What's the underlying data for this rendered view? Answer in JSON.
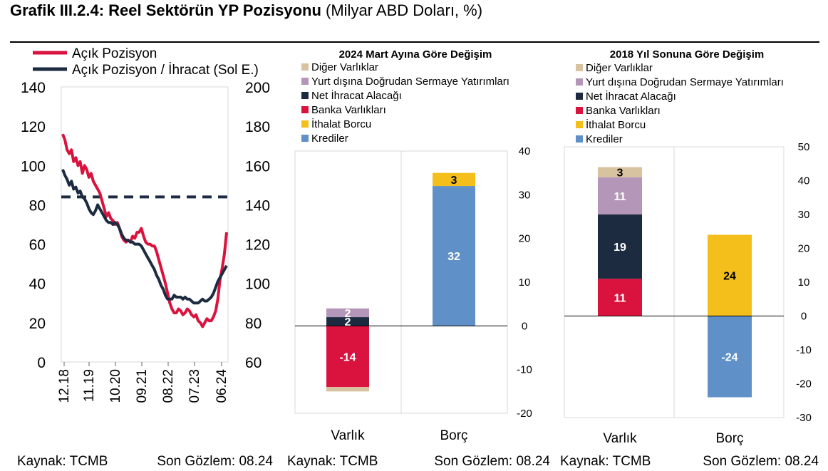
{
  "title": {
    "bold": "Grafik III.2.4: Reel Sektörün YP Pozisyonu",
    "unit": "(Milyar ABD Doları, %)"
  },
  "colors": {
    "red": "#d9133e",
    "navy": "#1d2b41",
    "beige": "#d7c3a0",
    "lilac": "#b497b8",
    "yellow": "#f5bf1b",
    "blue": "#5f90c8"
  },
  "chart_data": [
    {
      "type": "line",
      "legend": [
        "Açık Pozisyon",
        "Açık Pozisyon / İhracat (Sol E.)"
      ],
      "x_ticks": [
        "12.18",
        "11.19",
        "10.20",
        "09.21",
        "08.22",
        "07.23",
        "06.24"
      ],
      "left_axis": {
        "ticks": [
          0,
          20,
          40,
          60,
          80,
          100,
          120,
          140
        ],
        "range": [
          0,
          140
        ]
      },
      "right_axis": {
        "ticks": [
          60,
          80,
          100,
          120,
          140,
          160,
          180,
          200
        ],
        "range": [
          60,
          200
        ]
      },
      "reference_line": {
        "axis": "left",
        "value": 84,
        "style": "dashed"
      },
      "series": [
        {
          "name": "Açık Pozisyon",
          "axis": "right",
          "values": [
            176,
            173,
            168,
            166,
            168,
            162,
            164,
            160,
            162,
            156,
            160,
            158,
            154,
            156,
            152,
            150,
            148,
            146,
            142,
            138,
            134,
            136,
            133,
            132,
            130,
            131,
            128,
            124,
            122,
            121,
            122,
            121,
            124,
            123,
            126,
            126,
            128,
            124,
            121,
            120,
            120,
            119,
            119,
            116,
            112,
            108,
            104,
            100,
            95,
            90,
            87,
            85,
            85,
            87,
            86,
            84,
            85,
            87,
            86,
            84,
            83,
            84,
            81,
            80,
            78,
            80,
            82,
            81,
            81,
            83,
            86,
            92,
            102,
            108,
            115,
            126
          ]
        },
        {
          "name": "Açık Pozisyon / İhracat (Sol E.)",
          "axis": "left",
          "values": [
            98,
            95,
            93,
            90,
            92,
            88,
            89,
            86,
            87,
            84,
            83,
            81,
            78,
            76,
            75,
            77,
            80,
            78,
            76,
            74,
            72,
            71,
            71,
            70,
            71,
            70,
            68,
            65,
            63,
            62,
            62,
            61,
            61,
            60,
            60,
            60,
            59,
            57,
            55,
            53,
            51,
            49,
            47,
            44,
            42,
            39,
            37,
            34,
            32,
            32,
            32,
            34,
            33,
            33,
            33,
            32,
            33,
            32,
            32,
            31,
            30,
            30,
            30,
            31,
            32,
            31,
            31,
            32,
            33,
            35,
            38,
            41,
            43,
            45,
            47,
            49
          ]
        }
      ]
    },
    {
      "type": "bar",
      "stacked": true,
      "title": "2024 Mart Ayına Göre Değişim",
      "categories": [
        "Varlık",
        "Borç"
      ],
      "ylim": [
        -20,
        40
      ],
      "y_ticks": [
        -20,
        -10,
        0,
        10,
        20,
        30,
        40
      ],
      "legend": [
        "Diğer Varlıklar",
        "Yurt dışına Doğrudan Sermaye Yatırımları",
        "Net İhracat Alacağı",
        "Banka Varlıkları",
        "İthalat Borcu",
        "Krediler"
      ],
      "segments": [
        {
          "category": "Varlık",
          "series": "Banka Varlıkları",
          "value": -14,
          "label": "-14"
        },
        {
          "category": "Varlık",
          "series": "Diğer Varlıklar",
          "value": -1
        },
        {
          "category": "Varlık",
          "series": "Net İhracat Alacağı",
          "value": 2,
          "label": "2"
        },
        {
          "category": "Varlık",
          "series": "Yurt dışına Doğrudan Sermaye Yatırımları",
          "value": 2,
          "label": "2"
        },
        {
          "category": "Borç",
          "series": "Krediler",
          "value": 32,
          "label": "32"
        },
        {
          "category": "Borç",
          "series": "İthalat Borcu",
          "value": 3,
          "label": "3"
        }
      ]
    },
    {
      "type": "bar",
      "stacked": true,
      "title": "2018 Yıl Sonuna Göre Değişim",
      "categories": [
        "Varlık",
        "Borç"
      ],
      "ylim": [
        -30,
        50
      ],
      "y_ticks": [
        -30,
        -20,
        -10,
        0,
        10,
        20,
        30,
        40,
        50
      ],
      "legend": [
        "Diğer Varlıklar",
        "Yurt dışına Doğrudan Sermaye Yatırımları",
        "Net İhracat Alacağı",
        "Banka Varlıkları",
        "İthalat Borcu",
        "Krediler"
      ],
      "segments": [
        {
          "category": "Varlık",
          "series": "Banka Varlıkları",
          "value": 11,
          "label": "11"
        },
        {
          "category": "Varlık",
          "series": "Net İhracat Alacağı",
          "value": 19,
          "label": "19"
        },
        {
          "category": "Varlık",
          "series": "Yurt dışına Doğrudan Sermaye Yatırımları",
          "value": 11,
          "label": "11"
        },
        {
          "category": "Varlık",
          "series": "Diğer Varlıklar",
          "value": 3,
          "label": "3"
        },
        {
          "category": "Borç",
          "series": "İthalat Borcu",
          "value": 24,
          "label": "24"
        },
        {
          "category": "Borç",
          "series": "Krediler",
          "value": -24,
          "label": "-24"
        }
      ]
    }
  ],
  "footers": [
    {
      "source": "Kaynak: TCMB",
      "last_obs": "Son Gözlem: 08.24"
    },
    {
      "source": "Kaynak: TCMB",
      "last_obs": "Son Gözlem: 08.24"
    },
    {
      "source": "Kaynak: TCMB",
      "last_obs": "Son Gözlem: 08.24"
    }
  ]
}
